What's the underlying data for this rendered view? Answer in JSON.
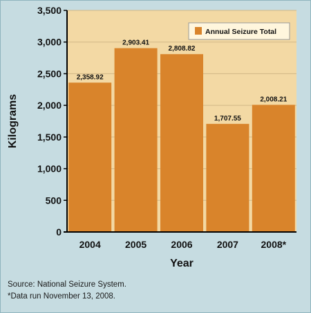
{
  "chart_data": {
    "type": "bar",
    "categories": [
      "2004",
      "2005",
      "2006",
      "2007",
      "2008*"
    ],
    "series": [
      {
        "name": "Annual Seizure Total",
        "values": [
          2358.92,
          2903.41,
          2808.82,
          1707.55,
          2008.21
        ],
        "value_labels": [
          "2,358.92",
          "2,903.41",
          "2,808.82",
          "1,707.55",
          "2,008.21"
        ]
      }
    ],
    "xlabel": "Year",
    "ylabel": "Kilograms",
    "ylim": [
      0,
      3500
    ],
    "yticks": [
      0,
      500,
      1000,
      1500,
      2000,
      2500,
      3000,
      3500
    ],
    "ytick_labels": [
      "0",
      "500",
      "1,000",
      "1,500",
      "2,000",
      "2,500",
      "3,000",
      "3,500"
    ],
    "grid": true,
    "legend": "top-right",
    "colors": {
      "bar": "#d9842b",
      "plot_bg": "#f3d9a4",
      "frame_bg": "#c6dce1",
      "grid": "#d2b886"
    }
  },
  "footer": {
    "source": "Source: National Seizure System.",
    "note": "*Data run November 13, 2008."
  }
}
